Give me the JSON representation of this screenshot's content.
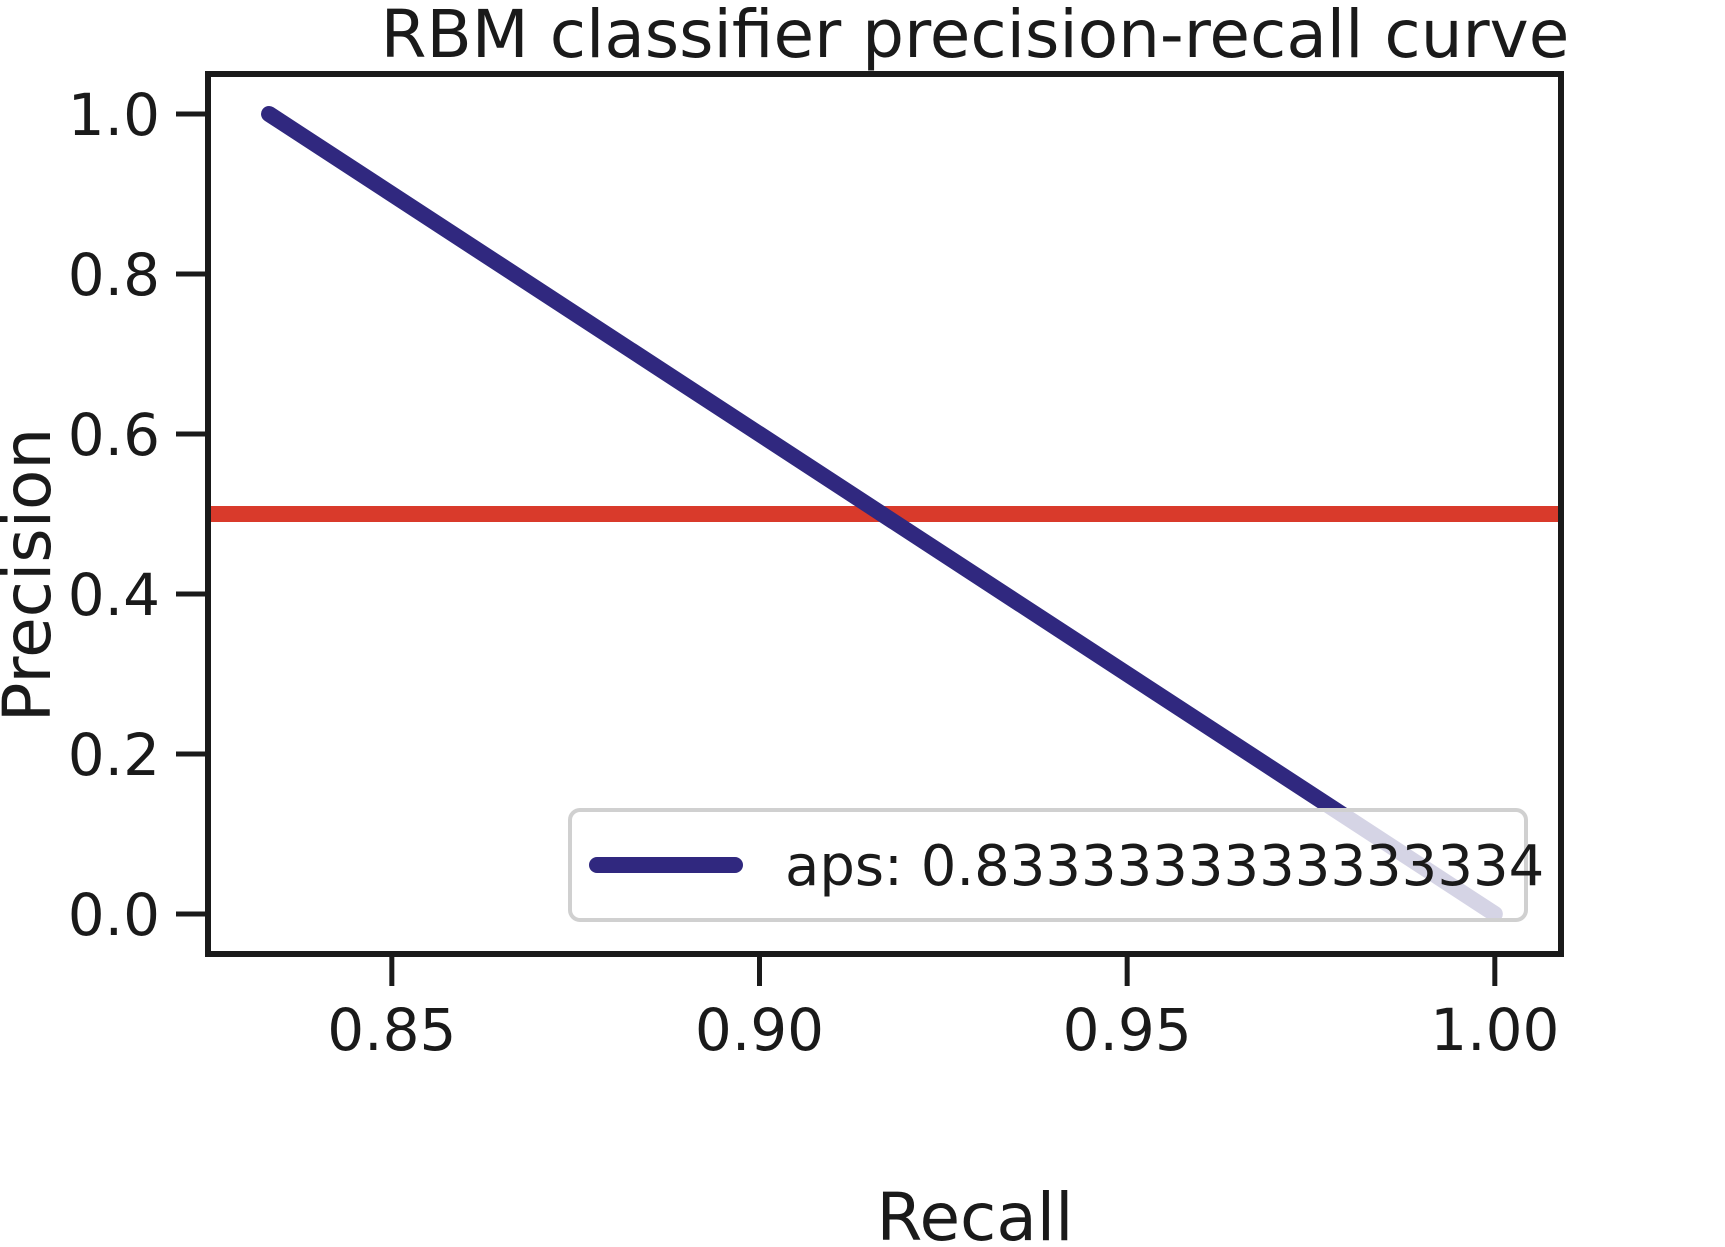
{
  "chart_data": {
    "type": "line",
    "title": "RBM classifier precision-recall curve",
    "xlabel": "Recall",
    "ylabel": "Precision",
    "xlim": [
      0.825,
      1.009
    ],
    "ylim": [
      -0.05,
      1.05
    ],
    "xticks": [
      0.85,
      0.9,
      0.95,
      1.0
    ],
    "xtick_labels": [
      "0.85",
      "0.90",
      "0.95",
      "1.00"
    ],
    "yticks": [
      0.0,
      0.2,
      0.4,
      0.6,
      0.8,
      1.0
    ],
    "ytick_labels": [
      "0.0",
      "0.2",
      "0.4",
      "0.6",
      "0.8",
      "1.0"
    ],
    "grid": false,
    "series": [
      {
        "name": "aps: 0.8333333333333334",
        "x": [
          0.8333,
          1.0
        ],
        "y": [
          1.0,
          0.0
        ],
        "color": "#30287f"
      }
    ],
    "reference_lines": [
      {
        "orientation": "horizontal",
        "y": 0.5,
        "color": "#d93a2b"
      }
    ],
    "legend": {
      "placement": "lower-right",
      "entries": [
        "aps: 0.8333333333333334"
      ]
    }
  }
}
